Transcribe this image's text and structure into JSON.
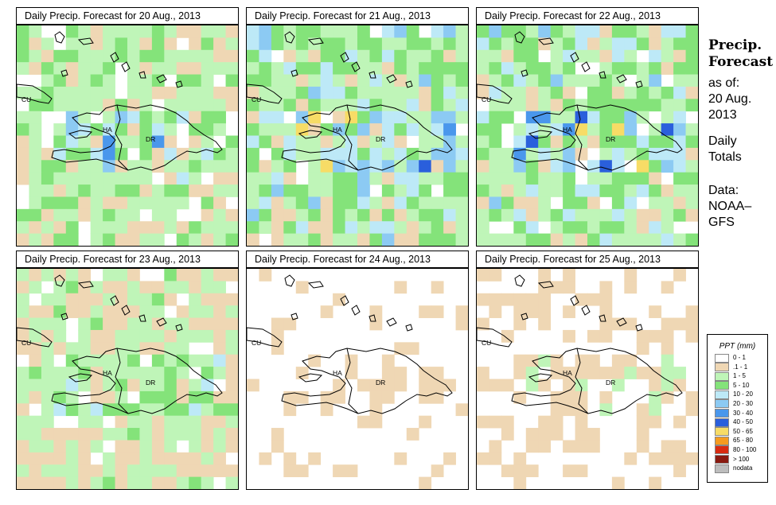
{
  "panels": [
    {
      "title": "Daily Precip. Forecast for  20 Aug., 2013",
      "seed": 11,
      "wet": 0.55
    },
    {
      "title": "Daily Precip. Forecast for  21 Aug., 2013",
      "seed": 23,
      "wet": 0.75
    },
    {
      "title": "Daily Precip. Forecast for  22 Aug., 2013",
      "seed": 37,
      "wet": 0.7
    },
    {
      "title": "Daily Precip. Forecast for  23 Aug., 2013",
      "seed": 41,
      "wet": 0.45
    },
    {
      "title": "Daily Precip. Forecast for  24 Aug., 2013",
      "seed": 53,
      "wet": 0.15
    },
    {
      "title": "Daily Precip. Forecast for  25 Aug., 2013",
      "seed": 67,
      "wet": 0.2
    }
  ],
  "map_labels": {
    "cuba": "CU",
    "haiti": "HA",
    "dominican_republic": "DR"
  },
  "sidebar": {
    "heading_1": "Precip.",
    "heading_2": "Forecast",
    "as_of": "as of:",
    "date_1": "20 Aug.",
    "date_2": "2013",
    "totals_1": "Daily",
    "totals_2": "Totals",
    "source_1": "Data:",
    "source_2": "NOAA–",
    "source_3": "GFS"
  },
  "legend": {
    "title": "PPT (mm)",
    "items": [
      {
        "label": "0 - 1",
        "color": "#ffffff"
      },
      {
        "label": ".1 - 1",
        "color": "#efd7b4"
      },
      {
        "label": "1 - 5",
        "color": "#bff5b8"
      },
      {
        "label": "5 - 10",
        "color": "#84e37a"
      },
      {
        "label": "10 - 20",
        "color": "#bde9f7"
      },
      {
        "label": "20 - 30",
        "color": "#8ccaf3"
      },
      {
        "label": "30 - 40",
        "color": "#4a97ec"
      },
      {
        "label": "40 - 50",
        "color": "#2a5fdc"
      },
      {
        "label": "50 - 65",
        "color": "#f7dc66"
      },
      {
        "label": "65 - 80",
        "color": "#f59b1f"
      },
      {
        "label": "80 - 100",
        "color": "#d92b10"
      },
      {
        "label": "> 100",
        "color": "#8a1a10"
      },
      {
        "label": "nodata",
        "color": "#bdbdbd"
      }
    ]
  }
}
